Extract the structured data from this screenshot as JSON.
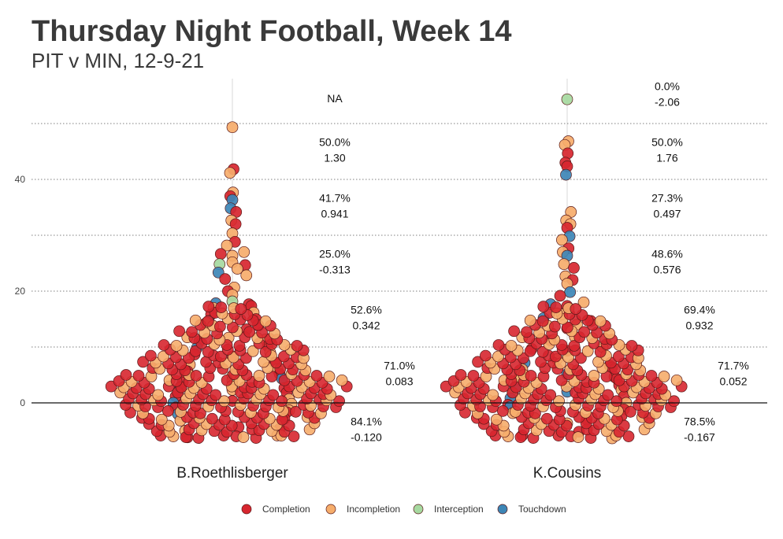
{
  "chart_data": {
    "type": "scatter",
    "subtype": "beeswarm",
    "title": "Thursday Night Football, Week 14",
    "subtitle": "PIT v MIN, 12-9-21",
    "categories": [
      "B.Roethlisberger",
      "K.Cousins"
    ],
    "y_ticks": [
      "0",
      "20",
      "40"
    ],
    "ylim": [
      -7,
      58
    ],
    "legend": {
      "position": "bottom",
      "items": [
        {
          "label": "Completion",
          "color": "#d7262f"
        },
        {
          "label": "Incompletion",
          "color": "#f6ad6b"
        },
        {
          "label": "Interception",
          "color": "#a6d9a0"
        },
        {
          "label": "Touchdown",
          "color": "#3d86b6"
        }
      ]
    },
    "bin_annotations": [
      {
        "player": "B.Roethlisberger",
        "bins": [
          {
            "y": 54.5,
            "pct": "NA",
            "epa": ""
          },
          {
            "y": 45,
            "pct": "50.0%",
            "epa": "1.30"
          },
          {
            "y": 35,
            "pct": "41.7%",
            "epa": "0.941"
          },
          {
            "y": 25,
            "pct": "25.0%",
            "epa": "-0.313"
          },
          {
            "y": 15,
            "pct": "52.6%",
            "epa": "0.342"
          },
          {
            "y": 5,
            "pct": "71.0%",
            "epa": "0.083"
          },
          {
            "y": -5,
            "pct": "84.1%",
            "epa": "-0.120"
          }
        ]
      },
      {
        "player": "K.Cousins",
        "bins": [
          {
            "y": 55,
            "pct": "0.0%",
            "epa": "-2.06"
          },
          {
            "y": 45,
            "pct": "50.0%",
            "epa": "1.76"
          },
          {
            "y": 35,
            "pct": "27.3%",
            "epa": "0.497"
          },
          {
            "y": 25,
            "pct": "48.6%",
            "epa": "0.576"
          },
          {
            "y": 15,
            "pct": "69.4%",
            "epa": "0.932"
          },
          {
            "y": 5,
            "pct": "71.7%",
            "epa": "0.052"
          },
          {
            "y": -5,
            "pct": "78.5%",
            "epa": "-0.167"
          }
        ]
      }
    ],
    "series": [
      {
        "name": "B.Roethlisberger",
        "points": [
          [
            49,
            "Incompletion"
          ],
          [
            42,
            "Completion"
          ],
          [
            41,
            "Incompletion"
          ],
          [
            38,
            "Incompletion"
          ],
          [
            37,
            "Completion"
          ],
          [
            36,
            "Touchdown"
          ],
          [
            35,
            "Touchdown"
          ],
          [
            34,
            "Completion"
          ],
          [
            33,
            "Incompletion"
          ],
          [
            32,
            "Completion"
          ],
          [
            30,
            "Incompletion"
          ],
          [
            29,
            "Completion"
          ],
          [
            28,
            "Incompletion"
          ],
          [
            27,
            "Completion"
          ],
          [
            27,
            "Incompletion"
          ],
          [
            26,
            "Incompletion"
          ],
          [
            25,
            "Interception"
          ],
          [
            25,
            "Incompletion"
          ],
          [
            25,
            "Completion"
          ],
          [
            24,
            "Incompletion"
          ],
          [
            23,
            "Touchdown"
          ],
          [
            23,
            "Incompletion"
          ],
          [
            22,
            "Completion"
          ],
          [
            21,
            "Incompletion"
          ],
          [
            20,
            "Completion"
          ],
          [
            19,
            "Incompletion"
          ],
          [
            18,
            "Touchdown"
          ],
          [
            18,
            "Interception"
          ],
          [
            18,
            "Completion"
          ],
          [
            17,
            "Incompletion"
          ],
          [
            17,
            "Completion"
          ],
          [
            16,
            "Completion"
          ],
          [
            16,
            "Incompletion"
          ],
          [
            15,
            "Touchdown"
          ],
          [
            15,
            "Completion"
          ],
          [
            14,
            "Incompletion"
          ],
          [
            14,
            "Completion"
          ],
          [
            13,
            "Completion"
          ],
          [
            12,
            "Incompletion"
          ],
          [
            11,
            "Completion"
          ],
          [
            11,
            "Incompletion"
          ],
          [
            10,
            "Touchdown"
          ],
          [
            10,
            "Completion"
          ],
          [
            9,
            "Completion"
          ],
          [
            9,
            "Incompletion"
          ],
          [
            8,
            "Completion"
          ],
          [
            7,
            "Incompletion"
          ],
          [
            7,
            "Completion"
          ],
          [
            6,
            "Completion"
          ],
          [
            6,
            "Incompletion"
          ],
          [
            5,
            "Completion"
          ],
          [
            5,
            "Incompletion"
          ],
          [
            5,
            "Completion"
          ],
          [
            4,
            "Completion"
          ],
          [
            4,
            "Incompletion"
          ],
          [
            4,
            "Touchdown"
          ],
          [
            3,
            "Completion"
          ],
          [
            3,
            "Interception"
          ],
          [
            3,
            "Completion"
          ],
          [
            2,
            "Touchdown"
          ],
          [
            2,
            "Incompletion"
          ],
          [
            2,
            "Completion"
          ],
          [
            1,
            "Completion"
          ],
          [
            1,
            "Incompletion"
          ],
          [
            0,
            "Touchdown"
          ],
          [
            0,
            "Completion"
          ],
          [
            0,
            "Incompletion"
          ],
          [
            -1,
            "Completion"
          ],
          [
            -1,
            "Incompletion"
          ],
          [
            -2,
            "Touchdown"
          ],
          [
            -2,
            "Completion"
          ],
          [
            -3,
            "Incompletion"
          ],
          [
            -3,
            "Completion"
          ],
          [
            -4,
            "Completion"
          ],
          [
            -5,
            "Incompletion"
          ],
          [
            -5,
            "Completion"
          ],
          [
            -6,
            "Completion"
          ],
          [
            -6,
            "Incompletion"
          ]
        ]
      },
      {
        "name": "K.Cousins",
        "points": [
          [
            54,
            "Interception"
          ],
          [
            47,
            "Incompletion"
          ],
          [
            46,
            "Incompletion"
          ],
          [
            45,
            "Completion"
          ],
          [
            43,
            "Completion"
          ],
          [
            42,
            "Completion"
          ],
          [
            41,
            "Touchdown"
          ],
          [
            34,
            "Incompletion"
          ],
          [
            33,
            "Incompletion"
          ],
          [
            32,
            "Incompletion"
          ],
          [
            31,
            "Completion"
          ],
          [
            30,
            "Touchdown"
          ],
          [
            29,
            "Incompletion"
          ],
          [
            28,
            "Completion"
          ],
          [
            27,
            "Incompletion"
          ],
          [
            26,
            "Touchdown"
          ],
          [
            25,
            "Incompletion"
          ],
          [
            24,
            "Completion"
          ],
          [
            23,
            "Incompletion"
          ],
          [
            22,
            "Completion"
          ],
          [
            21,
            "Incompletion"
          ],
          [
            20,
            "Touchdown"
          ],
          [
            19,
            "Completion"
          ],
          [
            18,
            "Touchdown"
          ],
          [
            18,
            "Incompletion"
          ],
          [
            17,
            "Completion"
          ],
          [
            16,
            "Incompletion"
          ],
          [
            15,
            "Touchdown"
          ],
          [
            15,
            "Completion"
          ],
          [
            14,
            "Incompletion"
          ],
          [
            13,
            "Completion"
          ],
          [
            12,
            "Incompletion"
          ],
          [
            11,
            "Completion"
          ],
          [
            10,
            "Completion"
          ],
          [
            10,
            "Incompletion"
          ],
          [
            9,
            "Completion"
          ],
          [
            8,
            "Incompletion"
          ],
          [
            7,
            "Touchdown"
          ],
          [
            7,
            "Completion"
          ],
          [
            6,
            "Incompletion"
          ],
          [
            6,
            "Completion"
          ],
          [
            5,
            "Interception"
          ],
          [
            5,
            "Touchdown"
          ],
          [
            5,
            "Completion"
          ],
          [
            4,
            "Incompletion"
          ],
          [
            4,
            "Completion"
          ],
          [
            3,
            "Touchdown"
          ],
          [
            3,
            "Completion"
          ],
          [
            2,
            "Interception"
          ],
          [
            2,
            "Touchdown"
          ],
          [
            2,
            "Incompletion"
          ],
          [
            1,
            "Touchdown"
          ],
          [
            1,
            "Completion"
          ],
          [
            0,
            "Completion"
          ],
          [
            0,
            "Incompletion"
          ],
          [
            -1,
            "Touchdown"
          ],
          [
            -1,
            "Completion"
          ],
          [
            -2,
            "Incompletion"
          ],
          [
            -2,
            "Completion"
          ],
          [
            -3,
            "Completion"
          ],
          [
            -4,
            "Incompletion"
          ],
          [
            -5,
            "Completion"
          ],
          [
            -6,
            "Completion"
          ],
          [
            -6,
            "Incompletion"
          ]
        ]
      }
    ]
  }
}
